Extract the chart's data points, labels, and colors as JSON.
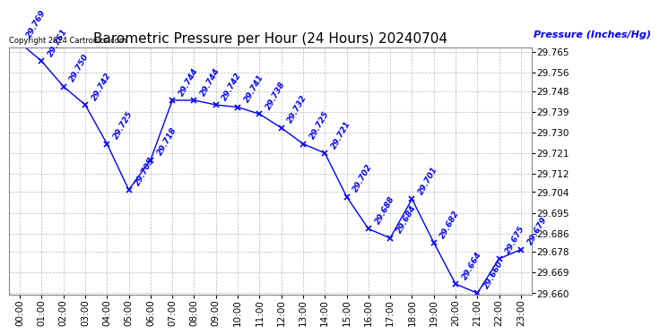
{
  "title": "Barometric Pressure per Hour (24 Hours) 20240704",
  "ylabel": "Pressure (Inches/Hg)",
  "copyright": "Copyright 2024 Cartronics.com",
  "hours": [
    0,
    1,
    2,
    3,
    4,
    5,
    6,
    7,
    8,
    9,
    10,
    11,
    12,
    13,
    14,
    15,
    16,
    17,
    18,
    19,
    20,
    21,
    22,
    23
  ],
  "pressures": [
    29.769,
    29.761,
    29.75,
    29.742,
    29.725,
    29.705,
    29.718,
    29.744,
    29.744,
    29.742,
    29.741,
    29.738,
    29.732,
    29.725,
    29.721,
    29.702,
    29.688,
    29.684,
    29.701,
    29.682,
    29.664,
    29.66,
    29.675,
    29.679
  ],
  "ylim_min": 29.6595,
  "ylim_max": 29.767,
  "yticks": [
    29.66,
    29.669,
    29.678,
    29.686,
    29.695,
    29.704,
    29.712,
    29.721,
    29.73,
    29.739,
    29.748,
    29.756,
    29.765
  ],
  "line_color": "blue",
  "marker_color": "blue",
  "text_color": "blue",
  "grid_color": "#bbbbbb",
  "bg_color": "white",
  "title_color": "black",
  "title_fontsize": 11,
  "label_fontsize": 8,
  "tick_fontsize": 7.5,
  "annot_fontsize": 6.5,
  "copyright_fontsize": 6
}
